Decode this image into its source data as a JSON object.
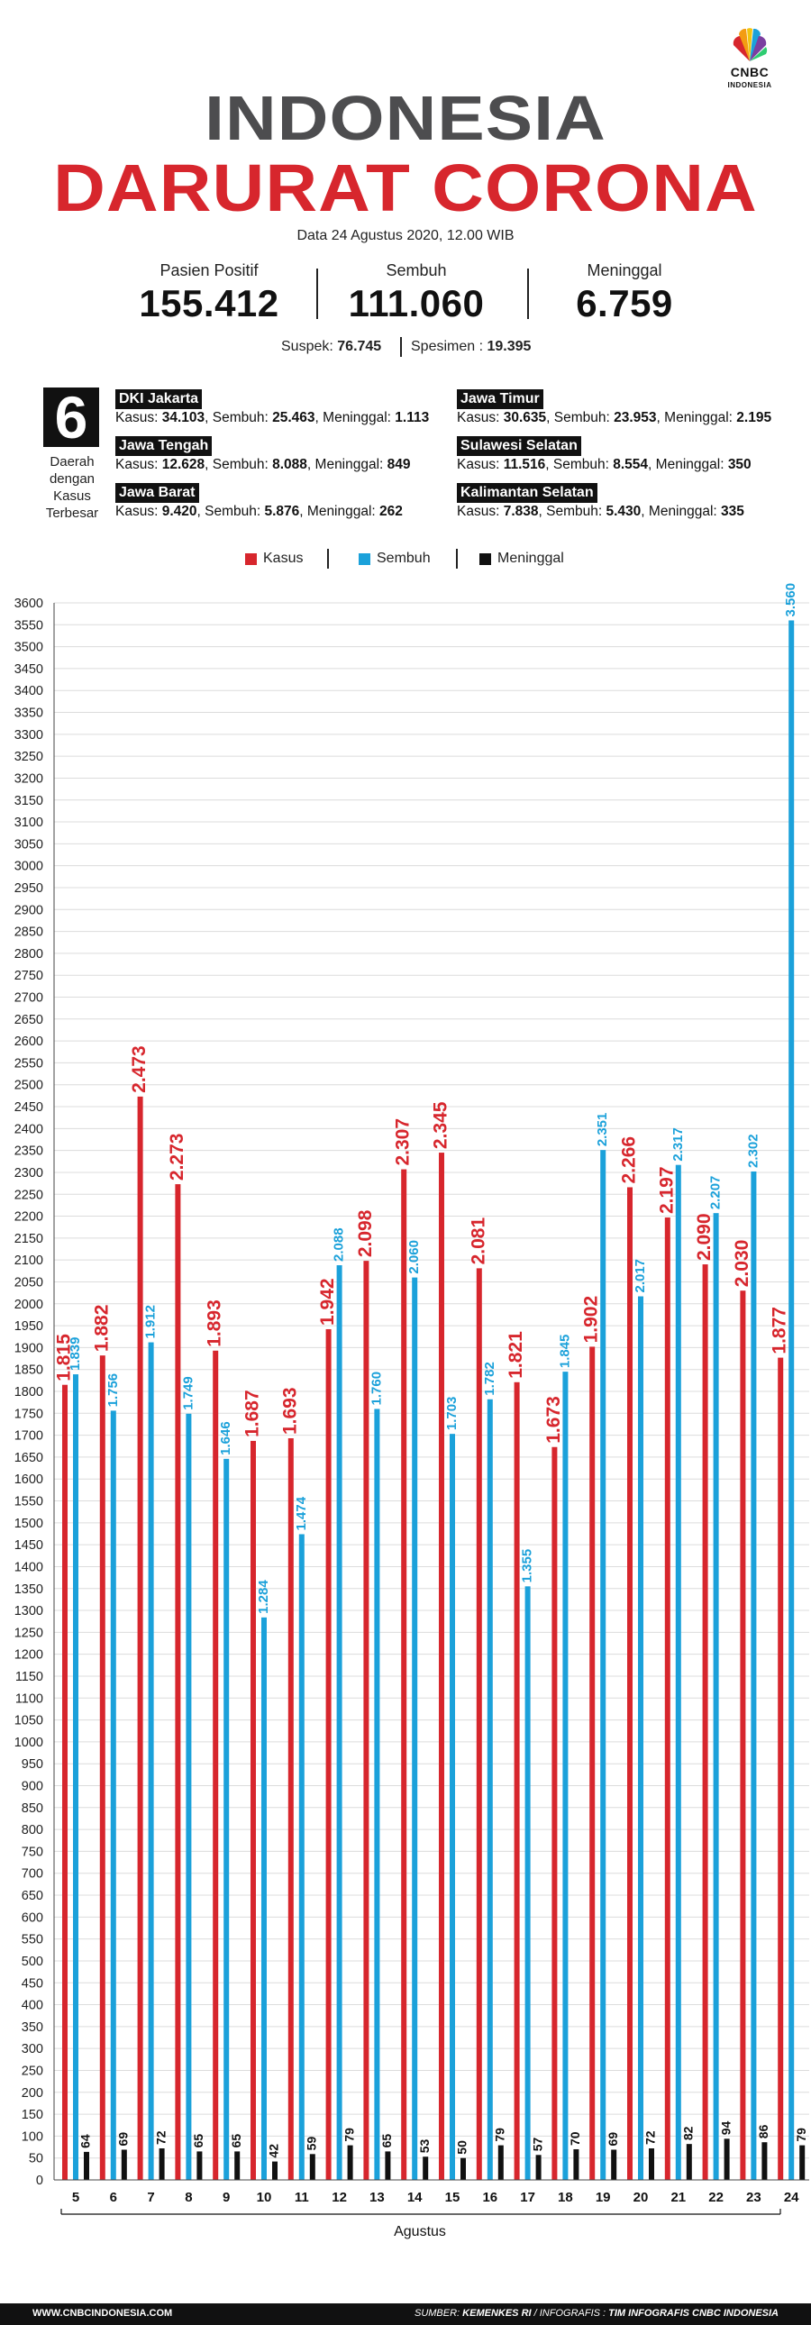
{
  "logo": {
    "word": "CNBC",
    "sub": "INDONESIA"
  },
  "title": {
    "line1": "INDONESIA",
    "line2": "DARURAT CORONA"
  },
  "dateline": "Data 24 Agustus 2020, 12.00 WIB",
  "stats": [
    {
      "label": "Pasien Positif",
      "value": "155.412"
    },
    {
      "label": "Sembuh",
      "value": "111.060"
    },
    {
      "label": "Meninggal",
      "value": "6.759"
    }
  ],
  "suspek": {
    "label": "Suspek:",
    "value": "76.745"
  },
  "spesimen": {
    "label": "Spesimen :",
    "value": "19.395"
  },
  "regions_header": {
    "number": "6",
    "caption": [
      "Daerah",
      "dengan",
      "Kasus",
      "Terbesar"
    ]
  },
  "regions": [
    {
      "name": "DKI Jakarta",
      "kasus": "34.103",
      "sembuh": "25.463",
      "meninggal": "1.113"
    },
    {
      "name": "Jawa Timur",
      "kasus": "30.635",
      "sembuh": "23.953",
      "meninggal": "2.195"
    },
    {
      "name": "Jawa Tengah",
      "kasus": "12.628",
      "sembuh": "8.088",
      "meninggal": "849"
    },
    {
      "name": "Sulawesi Selatan",
      "kasus": "11.516",
      "sembuh": "8.554",
      "meninggal": "350"
    },
    {
      "name": "Jawa Barat",
      "kasus": "9.420",
      "sembuh": "5.876",
      "meninggal": "262"
    },
    {
      "name": "Kalimantan Selatan",
      "kasus": "7.838",
      "sembuh": "5.430",
      "meninggal": "335"
    }
  ],
  "region_labels": {
    "kasus": "Kasus:",
    "sembuh": "Sembuh:",
    "meninggal": "Meninggal:"
  },
  "legend": [
    {
      "name": "Kasus",
      "color": "#d7262d"
    },
    {
      "name": "Sembuh",
      "color": "#1ba1da"
    },
    {
      "name": "Meninggal",
      "color": "#111111"
    }
  ],
  "chart_data": {
    "type": "bar",
    "xlabel": "Agustus",
    "ylabel": "",
    "ylim": [
      0,
      3600
    ],
    "ytick_step": 50,
    "grid": true,
    "legend_position": "top",
    "categories": [
      "5",
      "6",
      "7",
      "8",
      "9",
      "10",
      "11",
      "12",
      "13",
      "14",
      "15",
      "16",
      "17",
      "18",
      "19",
      "20",
      "21",
      "22",
      "23",
      "24"
    ],
    "series": [
      {
        "name": "Kasus",
        "color": "#d7262d",
        "values": [
          1815,
          1882,
          2473,
          2273,
          1893,
          1687,
          1693,
          1942,
          2098,
          2307,
          2345,
          2081,
          1821,
          1673,
          1902,
          2266,
          2197,
          2090,
          2030,
          1877
        ],
        "labels": [
          "1.815",
          "1.882",
          "2.473",
          "2.273",
          "1.893",
          "1.687",
          "1.693",
          "1.942",
          "2.098",
          "2.307",
          "2.345",
          "2.081",
          "1.821",
          "1.673",
          "1.902",
          "2.266",
          "2.197",
          "2.090",
          "2.030",
          "1.877"
        ]
      },
      {
        "name": "Sembuh",
        "color": "#1ba1da",
        "values": [
          1839,
          1756,
          1912,
          1749,
          1646,
          1284,
          1474,
          2088,
          1760,
          2060,
          1703,
          1782,
          1355,
          1845,
          2351,
          2017,
          2317,
          2207,
          2302,
          3560
        ],
        "labels": [
          "1.839",
          "1.756",
          "1.912",
          "1.749",
          "1.646",
          "1.284",
          "1.474",
          "2.088",
          "1.760",
          "2.060",
          "1.703",
          "1.782",
          "1.355",
          "1.845",
          "2.351",
          "2.017",
          "2.317",
          "2.207",
          "2.302",
          "3.560"
        ]
      },
      {
        "name": "Meninggal",
        "color": "#111111",
        "values": [
          64,
          69,
          72,
          65,
          65,
          42,
          59,
          79,
          65,
          53,
          50,
          79,
          57,
          70,
          69,
          72,
          82,
          94,
          86,
          79
        ],
        "labels": [
          "64",
          "69",
          "72",
          "65",
          "65",
          "42",
          "59",
          "79",
          "65",
          "53",
          "50",
          "79",
          "57",
          "70",
          "69",
          "72",
          "82",
          "94",
          "86",
          "79"
        ]
      }
    ]
  },
  "footer": {
    "left": "WWW.CNBCINDONESIA.COM",
    "source_label": "SUMBER:",
    "source": "KEMENKES RI",
    "infografis_label": "/ INFOGRAFIS :",
    "infografis": "TIM INFOGRAFIS CNBC INDONESIA"
  }
}
